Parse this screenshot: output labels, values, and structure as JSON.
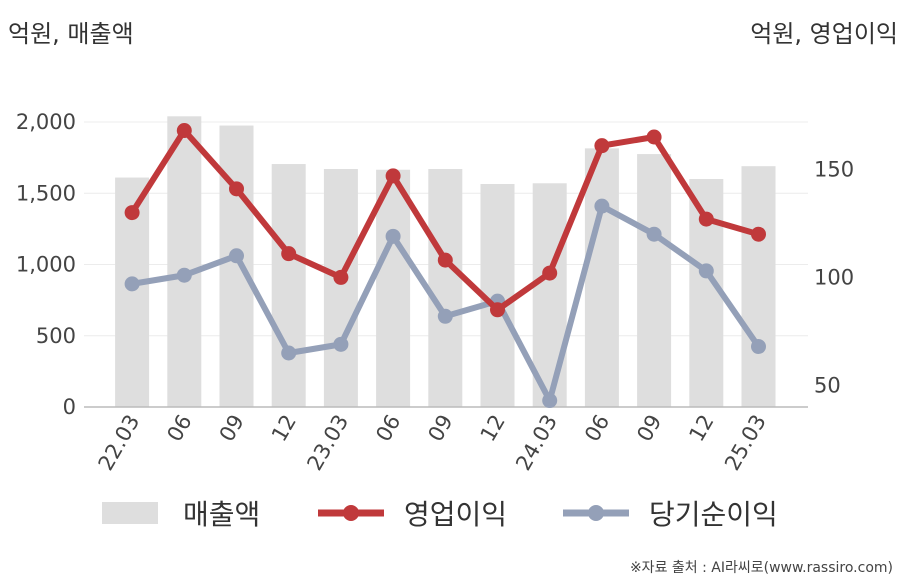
{
  "chart_data": {
    "type": "bar",
    "categories": [
      "22.03",
      "06",
      "09",
      "12",
      "23.03",
      "06",
      "09",
      "12",
      "24.03",
      "06",
      "09",
      "12",
      "25.03"
    ],
    "left_axis": {
      "unit_label": "억원, 매출액",
      "ticks": [
        "0",
        "500",
        "1,000",
        "1,500",
        "2,000"
      ],
      "range": [
        0,
        2000
      ]
    },
    "right_axis": {
      "unit_label": "억원, 영업이익",
      "ticks": [
        "50",
        "100",
        "150"
      ],
      "range": [
        40,
        169
      ]
    },
    "series": [
      {
        "name": "매출액",
        "kind": "bar",
        "axis": "left",
        "color": "#dedede",
        "values": [
          1610,
          2040,
          1975,
          1705,
          1670,
          1665,
          1670,
          1565,
          1570,
          1815,
          1775,
          1600,
          1690
        ]
      },
      {
        "name": "영업이익",
        "kind": "line",
        "axis": "right",
        "color": "#c0393b",
        "values": [
          130,
          168,
          141,
          111,
          100,
          147,
          108,
          85,
          102,
          161,
          165,
          127,
          120
        ]
      },
      {
        "name": "당기순이익",
        "kind": "line",
        "axis": "right",
        "color": "#94a0b8",
        "values": [
          97,
          101,
          110,
          65,
          69,
          119,
          82,
          89,
          43,
          133,
          120,
          103,
          68
        ]
      }
    ],
    "grid": true,
    "legend_position": "bottom"
  },
  "source": "※자료 출처 : AI라씨로(www.rassiro.com)"
}
